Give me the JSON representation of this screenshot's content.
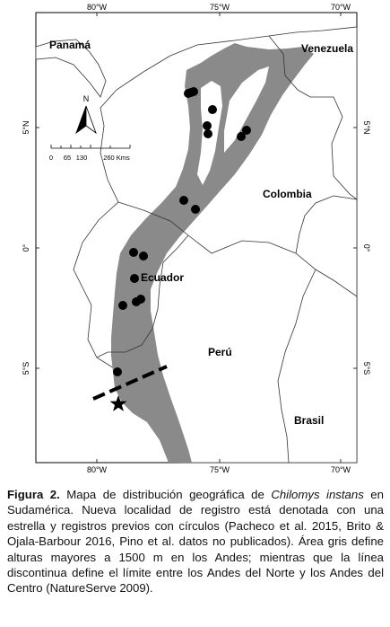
{
  "map": {
    "lon_ticks": [
      "80°W",
      "75°W",
      "70°W"
    ],
    "lat_ticks": [
      "5°N",
      "0°",
      "5°S"
    ],
    "countries": [
      "Panamá",
      "Venezuela",
      "Colombia",
      "Ecuador",
      "Perú",
      "Brasil"
    ],
    "north_label": "N",
    "scale_labels": [
      "0",
      "65",
      "130",
      "260 Kms"
    ],
    "colors": {
      "andes_area": "#8a8a8a",
      "ocean": "#ffffff",
      "borders": "#333333",
      "records": "#000000"
    }
  },
  "caption": {
    "label": "Figura 2.",
    "text_1": " Mapa de distribución geográfica de ",
    "species": "Chilomys instans",
    "text_2": " en Sudamérica. Nueva localidad de registro está denotada con una estrella y registros previos con círculos (Pacheco et al. 2015, Brito & Ojala-Barbour 2016,  Pino et al. datos no publicados). Área gris define alturas mayores a 1500 m en los Andes; mientras que la línea discontinua define el límite entre los Andes del Norte y los Andes del Centro (NatureServe 2009)."
  }
}
